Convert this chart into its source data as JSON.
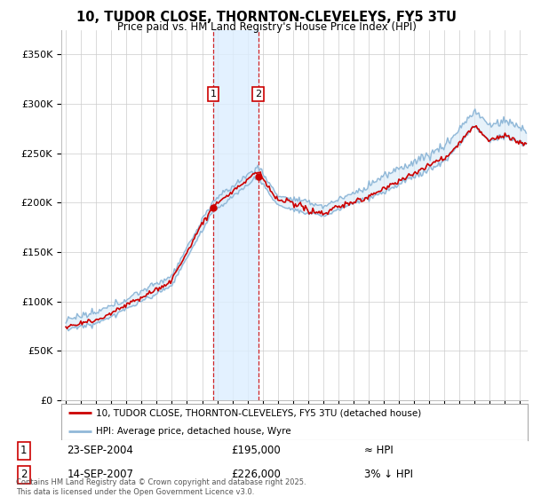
{
  "title": "10, TUDOR CLOSE, THORNTON-CLEVELEYS, FY5 3TU",
  "subtitle": "Price paid vs. HM Land Registry's House Price Index (HPI)",
  "ylabel_ticks": [
    "£0",
    "£50K",
    "£100K",
    "£150K",
    "£200K",
    "£250K",
    "£300K",
    "£350K"
  ],
  "ytick_values": [
    0,
    50000,
    100000,
    150000,
    200000,
    250000,
    300000,
    350000
  ],
  "ylim": [
    0,
    375000
  ],
  "xlim_start": 1994.7,
  "xlim_end": 2025.5,
  "sale1": {
    "date_num": 2004.73,
    "price": 195000,
    "label": "1",
    "date_str": "23-SEP-2004"
  },
  "sale2": {
    "date_num": 2007.71,
    "price": 226000,
    "label": "2",
    "date_str": "14-SEP-2007"
  },
  "hpi_upper_color": "#90b8d8",
  "hpi_lower_color": "#90b8d8",
  "hpi_fill_color": "#d8eaf7",
  "sale_color": "#cc0000",
  "shade_color": "#ddeeff",
  "legend_line1": "10, TUDOR CLOSE, THORNTON-CLEVELEYS, FY5 3TU (detached house)",
  "legend_line2": "HPI: Average price, detached house, Wyre",
  "table_row1": [
    "1",
    "23-SEP-2004",
    "£195,000",
    "≈ HPI"
  ],
  "table_row2": [
    "2",
    "14-SEP-2007",
    "£226,000",
    "3% ↓ HPI"
  ],
  "footer": "Contains HM Land Registry data © Crown copyright and database right 2025.\nThis data is licensed under the Open Government Licence v3.0.",
  "background_color": "#ffffff",
  "grid_color": "#cccccc"
}
